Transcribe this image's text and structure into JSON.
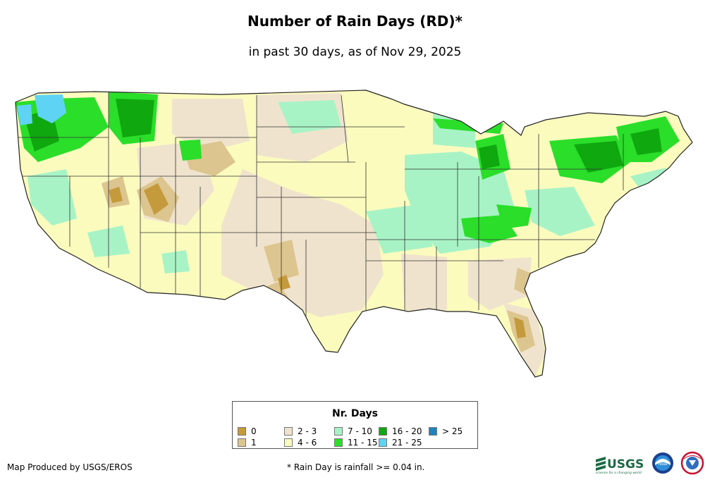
{
  "title": "Number of Rain Days (RD)*",
  "subtitle": "in past 30 days, as of Nov 29, 2025",
  "legend": {
    "title": "Nr. Days",
    "items": [
      {
        "label": "0",
        "color": "#c49a3c"
      },
      {
        "label": "1",
        "color": "#dcc58f"
      },
      {
        "label": "2 - 3",
        "color": "#f0e3cd"
      },
      {
        "label": "4 - 6",
        "color": "#fbfbbe"
      },
      {
        "label": "7 - 10",
        "color": "#a8f3c6"
      },
      {
        "label": "11 - 15",
        "color": "#2ade2a"
      },
      {
        "label": "16 - 20",
        "color": "#0fa80f"
      },
      {
        "label": "21 - 25",
        "color": "#5fd3f3"
      },
      {
        "label": "> 25",
        "color": "#1f82bd"
      }
    ]
  },
  "footer": {
    "credit": "Map Produced by USGS/EROS",
    "note": "* Rain Day is rainfall >= 0.04 in."
  },
  "logos": {
    "usgs_text": "USGS",
    "usgs_tagline": "science for a changing world",
    "noaa_text": "noaa",
    "nws_text": "NATIONAL WEATHER SERVICE"
  }
}
